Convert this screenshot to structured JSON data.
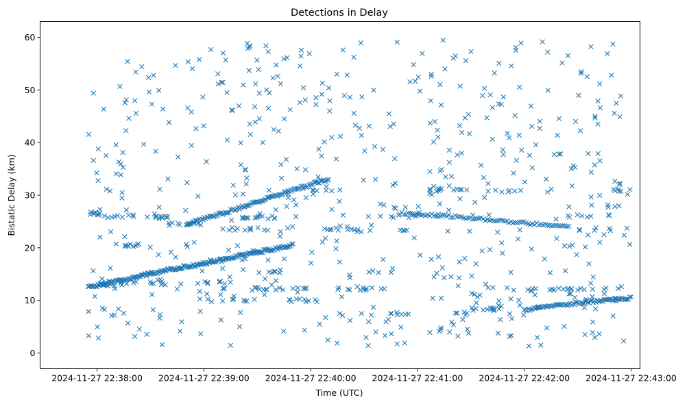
{
  "chart_data": {
    "type": "scatter",
    "title": "Detections in Delay",
    "xlabel": "Time (UTC)",
    "ylabel": "Bistatic Delay (km)",
    "marker": "x",
    "color": "#1f77b4",
    "x_unit": "seconds after 2024-11-27 22:38:00",
    "xlim": [
      -32,
      305
    ],
    "ylim": [
      -3,
      63
    ],
    "xticks": [
      0,
      60,
      120,
      180,
      240,
      300
    ],
    "xtick_labels": [
      "2024-11-27 22:38:00",
      "2024-11-27 22:39:00",
      "2024-11-27 22:40:00",
      "2024-11-27 22:41:00",
      "2024-11-27 22:42:00",
      "2024-11-27 22:43:00"
    ],
    "yticks": [
      0,
      10,
      20,
      30,
      40,
      50,
      60
    ],
    "ytick_labels": [
      "0",
      "10",
      "20",
      "30",
      "40",
      "50",
      "60"
    ],
    "time_range": [
      "2024-11-27 22:37:55",
      "2024-11-27 22:42:57"
    ],
    "tracks": [
      {
        "name": "rising track (lower)",
        "x": [
          -5,
          20,
          40,
          60,
          80,
          100,
          110
        ],
        "y": [
          12.5,
          14.3,
          15.8,
          17.0,
          18.5,
          19.8,
          20.5
        ]
      },
      {
        "name": "rising track (upper)",
        "x": [
          50,
          70,
          90,
          110,
          130
        ],
        "y": [
          24.5,
          26.5,
          28.7,
          31.0,
          33.0
        ]
      },
      {
        "name": "falling track",
        "x": [
          170,
          200,
          230,
          265
        ],
        "y": [
          26.5,
          26.0,
          25.0,
          24.0
        ]
      },
      {
        "name": "rising track (late)",
        "x": [
          240,
          270,
          300
        ],
        "y": [
          8.2,
          9.5,
          10.5
        ]
      }
    ],
    "point_count": 1150
  }
}
